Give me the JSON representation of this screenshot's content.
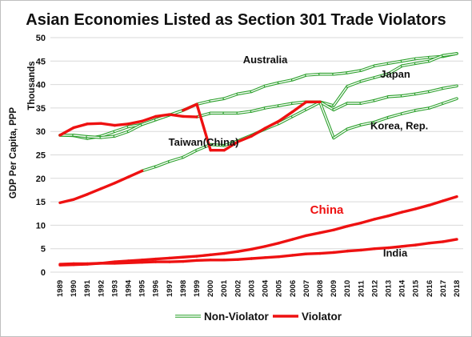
{
  "chart_data": {
    "type": "line",
    "title": "Asian Economies Listed as Section 301 Trade Violators",
    "ylabel": "GDP Per Capita, PPP",
    "yunit": "Thousands",
    "xlabel": "",
    "ylim": [
      0,
      50
    ],
    "yticks": [
      0,
      5,
      10,
      15,
      20,
      25,
      30,
      35,
      40,
      45,
      50
    ],
    "x": [
      1989,
      1990,
      1991,
      1992,
      1993,
      1994,
      1995,
      1996,
      1997,
      1998,
      1999,
      2000,
      2001,
      2002,
      2003,
      2004,
      2005,
      2006,
      2007,
      2008,
      2009,
      2010,
      2011,
      2012,
      2013,
      2014,
      2015,
      2016,
      2017,
      2018
    ],
    "grid": "horizontal",
    "legend": {
      "position": "bottom",
      "entries": [
        {
          "label": "Non-Violator",
          "color": "#2ca02c",
          "style": "double"
        },
        {
          "label": "Violator",
          "color": "#ee1111",
          "style": "solid"
        }
      ]
    },
    "series": [
      {
        "name": "Australia",
        "label_color": "#111111",
        "values": [
          29.2,
          29.1,
          28.5,
          29.0,
          30.0,
          31.0,
          31.5,
          32.5,
          33.5,
          34.5,
          35.8,
          36.5,
          37.0,
          38.0,
          38.5,
          39.7,
          40.4,
          41.0,
          42.0,
          42.2,
          42.2,
          42.5,
          43.0,
          44.0,
          44.5,
          45.0,
          45.5,
          45.8,
          46.0,
          46.6
        ],
        "violator": [
          true,
          false,
          false,
          false,
          false,
          false,
          false,
          false,
          false,
          false,
          true,
          false,
          false,
          false,
          false,
          false,
          false,
          false,
          false,
          false,
          false,
          false,
          false,
          false,
          false,
          false,
          false,
          false,
          false,
          false
        ]
      },
      {
        "name": "Japan",
        "label_color": "#111111",
        "values": [
          29.2,
          30.8,
          31.6,
          31.7,
          31.3,
          31.6,
          32.2,
          33.2,
          33.6,
          33.2,
          33.1,
          33.9,
          33.9,
          33.9,
          34.3,
          35.0,
          35.5,
          36.0,
          36.3,
          36.3,
          35.5,
          39.6,
          40.7,
          41.5,
          42.3,
          44.0,
          44.5,
          45.0,
          46.2,
          46.6
        ],
        "violator": [
          true,
          true,
          true,
          true,
          true,
          true,
          true,
          true,
          true,
          true,
          true,
          false,
          false,
          false,
          false,
          false,
          false,
          false,
          false,
          false,
          false,
          false,
          false,
          false,
          false,
          false,
          false,
          false,
          false,
          false
        ]
      },
      {
        "name": "Taiwan(China)",
        "label_color": "#111111",
        "values": [
          29.2,
          29.2,
          28.9,
          28.7,
          29.0,
          30.0,
          31.5,
          32.5,
          33.5,
          34.5,
          35.8,
          26.0,
          26.0,
          27.8,
          29.0,
          30.7,
          32.2,
          34.2,
          36.3,
          36.3,
          34.6,
          36.0,
          36.0,
          36.6,
          37.4,
          37.6,
          38.0,
          38.5,
          39.2,
          39.7
        ],
        "violator": [
          false,
          false,
          false,
          false,
          false,
          false,
          false,
          false,
          false,
          false,
          false,
          true,
          true,
          true,
          true,
          true,
          true,
          true,
          true,
          true,
          false,
          false,
          false,
          false,
          false,
          false,
          false,
          false,
          false,
          false
        ]
      },
      {
        "name": "Korea, Rep.",
        "label_color": "#111111",
        "values": [
          14.8,
          15.5,
          16.6,
          17.8,
          19.0,
          20.3,
          21.6,
          22.5,
          23.6,
          24.5,
          26.0,
          27.2,
          27.0,
          28.0,
          29.2,
          30.5,
          31.7,
          33.2,
          34.7,
          36.2,
          28.6,
          30.5,
          31.4,
          32.0,
          33.0,
          33.8,
          34.5,
          35.0,
          36.0,
          37.0
        ],
        "violator": [
          true,
          true,
          true,
          true,
          true,
          true,
          true,
          false,
          false,
          false,
          false,
          false,
          false,
          false,
          false,
          false,
          false,
          false,
          false,
          false,
          false,
          false,
          false,
          false,
          false,
          false,
          false,
          false,
          false,
          false
        ]
      },
      {
        "name": "China",
        "label_color": "#ee1111",
        "values": [
          1.5,
          1.6,
          1.7,
          1.9,
          2.2,
          2.4,
          2.6,
          2.8,
          3.0,
          3.2,
          3.4,
          3.7,
          4.0,
          4.4,
          4.9,
          5.5,
          6.2,
          7.0,
          7.8,
          8.4,
          9.0,
          9.8,
          10.5,
          11.3,
          12.0,
          12.8,
          13.5,
          14.3,
          15.2,
          16.1
        ],
        "violator": [
          true,
          true,
          true,
          true,
          true,
          true,
          true,
          true,
          true,
          true,
          true,
          true,
          true,
          true,
          true,
          true,
          true,
          true,
          true,
          true,
          true,
          true,
          true,
          true,
          true,
          true,
          true,
          true,
          true,
          true
        ]
      },
      {
        "name": "India",
        "label_color": "#111111",
        "values": [
          1.7,
          1.8,
          1.8,
          1.9,
          1.9,
          2.0,
          2.1,
          2.2,
          2.2,
          2.3,
          2.5,
          2.6,
          2.6,
          2.7,
          2.9,
          3.1,
          3.3,
          3.6,
          3.9,
          4.0,
          4.2,
          4.5,
          4.7,
          5.0,
          5.2,
          5.5,
          5.8,
          6.2,
          6.5,
          7.0
        ],
        "violator": [
          true,
          true,
          true,
          true,
          true,
          true,
          true,
          true,
          true,
          true,
          true,
          true,
          true,
          true,
          true,
          true,
          true,
          true,
          true,
          true,
          true,
          true,
          true,
          true,
          true,
          true,
          true,
          true,
          true,
          true
        ]
      }
    ]
  }
}
